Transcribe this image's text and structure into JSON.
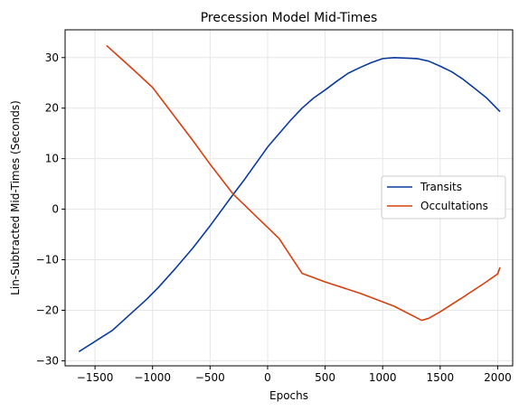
{
  "chart_data": {
    "type": "line",
    "title": "Precession Model Mid-Times",
    "xlabel": "Epochs",
    "ylabel": "Lin-Subtracted Mid-Times (Seconds)",
    "xlim": [
      -1760,
      2130
    ],
    "ylim": [
      -31,
      35.5
    ],
    "xticks": [
      -1500,
      -1000,
      -500,
      0,
      500,
      1000,
      1500,
      2000
    ],
    "xtick_labels": [
      "−1500",
      "−1000",
      "−500",
      "0",
      "500",
      "1000",
      "1500",
      "2000"
    ],
    "yticks": [
      -30,
      -20,
      -10,
      0,
      10,
      20,
      30
    ],
    "ytick_labels": [
      "−30",
      "−20",
      "−10",
      "0",
      "10",
      "20",
      "30"
    ],
    "grid": true,
    "legend_position": "right",
    "series": [
      {
        "name": "Transits",
        "color": "#0a3a9c",
        "x": [
          -1640,
          -1350,
          -1050,
          -950,
          -800,
          -650,
          -500,
          -300,
          -200,
          0,
          200,
          300,
          400,
          500,
          600,
          700,
          800,
          900,
          1000,
          1100,
          1200,
          1300,
          1400,
          1500,
          1600,
          1700,
          1800,
          1900,
          2020
        ],
        "y": [
          -28.2,
          -24,
          -17.8,
          -15.5,
          -11.7,
          -7.7,
          -3.3,
          2.9,
          5.9,
          12.3,
          17.6,
          20.0,
          22.0,
          23.6,
          25.3,
          26.9,
          28.0,
          29.0,
          29.8,
          30.0,
          29.9,
          29.8,
          29.3,
          28.3,
          27.2,
          25.7,
          23.9,
          22.1,
          19.3
        ]
      },
      {
        "name": "Occultations",
        "color": "#d4400f",
        "x": [
          -1400,
          -1200,
          -1000,
          -800,
          -650,
          -500,
          -300,
          -100,
          100,
          300,
          500,
          800,
          1100,
          1340,
          1400,
          1500,
          1700,
          1900,
          2000,
          2020
        ],
        "y": [
          32.4,
          28.3,
          24.1,
          18.1,
          13.6,
          8.9,
          3.0,
          -1.4,
          -5.8,
          -12.7,
          -14.4,
          -16.6,
          -19.2,
          -22,
          -21.6,
          -20.3,
          -17.4,
          -14.4,
          -12.8,
          -11.5
        ]
      }
    ]
  }
}
